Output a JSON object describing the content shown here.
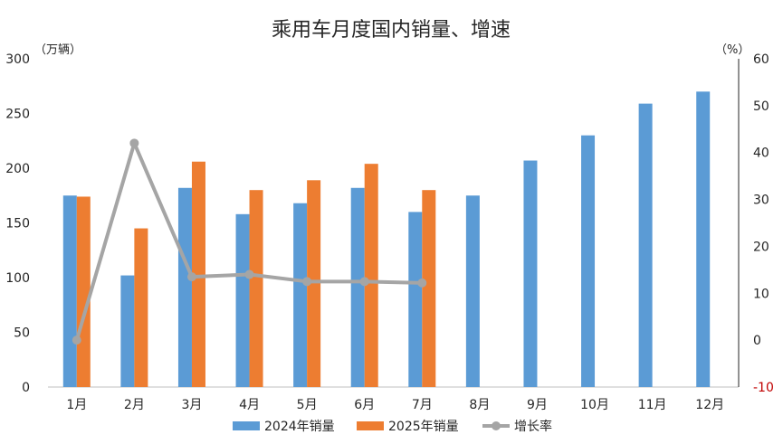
{
  "chart_data": {
    "type": "bar",
    "title": "乘用车月度国内销量、增速",
    "y_left_unit": "（万辆）",
    "y_right_unit": "（%）",
    "categories": [
      "1月",
      "2月",
      "3月",
      "4月",
      "5月",
      "6月",
      "7月",
      "8月",
      "9月",
      "10月",
      "11月",
      "12月"
    ],
    "y_left_range": [
      0,
      300
    ],
    "y_left_ticks": [
      "0",
      "50",
      "100",
      "150",
      "200",
      "250",
      "300"
    ],
    "y_right_range": [
      -10,
      60
    ],
    "y_right_ticks": [
      "-10",
      "0",
      "10",
      "20",
      "30",
      "40",
      "50",
      "60"
    ],
    "series": [
      {
        "name": "2024年销量",
        "kind": "bar",
        "axis": "left",
        "color": "#5B9BD5",
        "values": [
          175,
          102,
          182,
          158,
          168,
          182,
          160,
          175,
          207,
          230,
          259,
          270
        ]
      },
      {
        "name": "2025年销量",
        "kind": "bar",
        "axis": "left",
        "color": "#ED7D31",
        "values": [
          174,
          145,
          206,
          180,
          189,
          204,
          180,
          null,
          null,
          null,
          null,
          null
        ]
      },
      {
        "name": "增长率",
        "kind": "line",
        "axis": "right",
        "color": "#A5A5A5",
        "values": [
          0,
          42,
          13.5,
          14,
          12.5,
          12.5,
          12.2,
          null,
          null,
          null,
          null,
          null
        ]
      }
    ],
    "negative_tick_color": "#C00000",
    "grid": false,
    "legend_position": "bottom"
  }
}
